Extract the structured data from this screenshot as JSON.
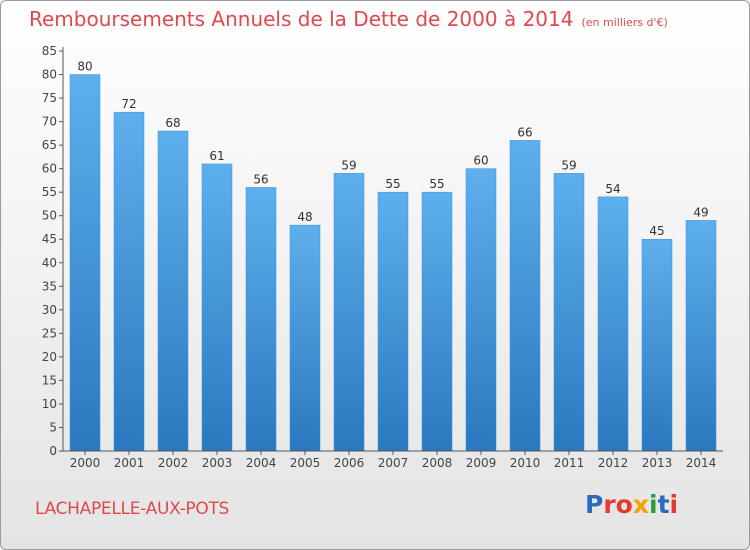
{
  "title": "Remboursements Annuels de la Dette de 2000 à 2014",
  "unit": "(en milliers d'€)",
  "commune": "LACHAPELLE-AUX-POTS",
  "logo": {
    "letters": [
      "P",
      "r",
      "o",
      "x",
      "i",
      "t",
      "i"
    ],
    "colors": [
      "#2a6bbf",
      "#e63a2e",
      "#e63a2e",
      "#f4a300",
      "#2a9d3a",
      "#2a6bbf",
      "#e63a2e"
    ]
  },
  "chart_data": {
    "type": "bar",
    "categories": [
      "2000",
      "2001",
      "2002",
      "2003",
      "2004",
      "2005",
      "2006",
      "2007",
      "2008",
      "2009",
      "2010",
      "2011",
      "2012",
      "2013",
      "2014"
    ],
    "values": [
      80,
      72,
      68,
      61,
      56,
      48,
      59,
      55,
      55,
      60,
      66,
      59,
      54,
      45,
      49
    ],
    "title": "Remboursements Annuels de la Dette de 2000 à 2014",
    "xlabel": "",
    "ylabel": "",
    "ylim": [
      0,
      85
    ],
    "yticks": [
      0,
      5,
      10,
      15,
      20,
      25,
      30,
      35,
      40,
      45,
      50,
      55,
      60,
      65,
      70,
      75,
      80,
      85
    ],
    "grid": false,
    "legend": "none",
    "bar_color": "#4a9fe0"
  }
}
